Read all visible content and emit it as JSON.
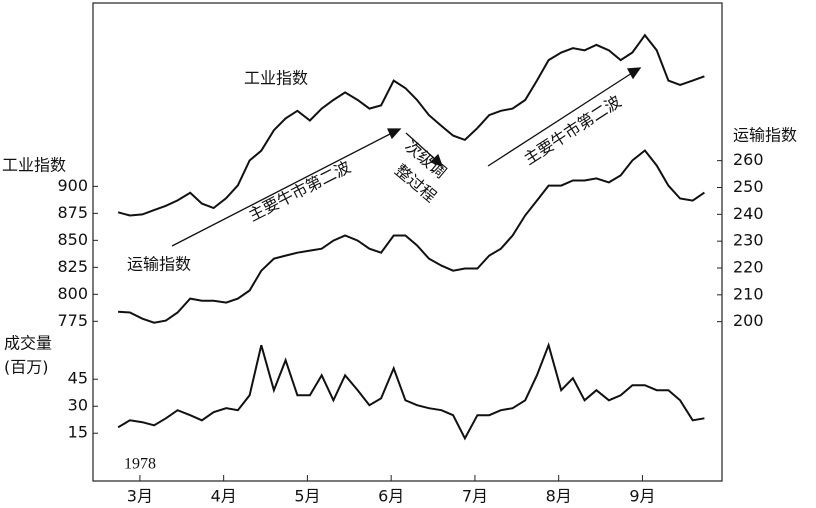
{
  "chart_data": {
    "type": "line",
    "ylabel": "工业指数",
    "y2label": "运输指数",
    "year_label": "1978",
    "x": [
      2.74,
      2.88,
      3.03,
      3.17,
      3.31,
      3.45,
      3.6,
      3.74,
      3.88,
      4.03,
      4.17,
      4.31,
      4.45,
      4.6,
      4.74,
      4.88,
      5.03,
      5.17,
      5.31,
      5.45,
      5.6,
      5.74,
      5.88,
      6.03,
      6.17,
      6.31,
      6.45,
      6.6,
      6.74,
      6.88,
      7.03,
      7.17,
      7.31,
      7.45,
      7.6,
      7.74,
      7.88,
      8.03,
      8.17,
      8.31,
      8.45,
      8.6,
      8.74,
      8.88,
      9.03,
      9.17,
      9.31,
      9.45,
      9.6,
      9.74
    ],
    "xlim": [
      2.44,
      9.95
    ],
    "xticks": [
      {
        "value": 3,
        "label": "3月"
      },
      {
        "value": 4,
        "label": "4月"
      },
      {
        "value": 5,
        "label": "5月"
      },
      {
        "value": 6,
        "label": "6月"
      },
      {
        "value": 7,
        "label": "7月"
      },
      {
        "value": 8,
        "label": "8月"
      },
      {
        "value": 9,
        "label": "9月"
      }
    ],
    "ylim": [
      628,
      1068
    ],
    "yticks": [
      775,
      800,
      825,
      850,
      875,
      900
    ],
    "y2lim": [
      141,
      318
    ],
    "y2ticks": [
      200,
      210,
      220,
      230,
      240,
      250,
      260
    ],
    "y3lim": [
      -11,
      253
    ],
    "y3ticks": [
      15,
      30,
      45
    ],
    "series": [
      {
        "name": "工业指数",
        "color": "#111111",
        "axis": "y",
        "values": [
          876,
          873,
          874,
          878,
          882,
          887,
          894,
          884,
          880,
          889,
          901,
          924,
          933,
          952,
          963,
          970,
          961,
          972,
          980,
          987,
          980,
          972,
          975,
          998,
          991,
          980,
          966,
          956,
          947,
          943,
          954,
          966,
          970,
          972,
          980,
          998,
          1017,
          1024,
          1028,
          1026,
          1031,
          1026,
          1017,
          1024,
          1040,
          1026,
          998,
          994,
          998,
          1002
        ]
      },
      {
        "name": "运输指数",
        "color": "#111111",
        "axis": "y2",
        "values": [
          203.7,
          203.4,
          201.1,
          199.6,
          200.4,
          203.4,
          208.6,
          207.8,
          207.8,
          207.1,
          208.6,
          211.6,
          219.0,
          223.5,
          224.6,
          225.7,
          226.5,
          227.2,
          230.2,
          232.1,
          230.2,
          227.2,
          225.7,
          232.1,
          232.1,
          228.4,
          223.5,
          220.9,
          219.0,
          219.8,
          219.8,
          224.6,
          227.2,
          232.1,
          239.6,
          245.1,
          250.7,
          250.7,
          252.6,
          252.6,
          253.4,
          251.9,
          254.5,
          260.1,
          263.8,
          258.2,
          250.7,
          245.9,
          245.1,
          248.1
        ]
      },
      {
        "name": "成交量",
        "unit": "(百万)",
        "color": "#111111",
        "axis": "y3",
        "values": [
          18.3,
          22.2,
          21.1,
          19.4,
          23.3,
          27.8,
          25,
          22.2,
          26.7,
          28.9,
          27.8,
          36.1,
          63.9,
          38.9,
          55.6,
          36.1,
          36.1,
          47.2,
          33.3,
          47.2,
          38.9,
          30.6,
          34.4,
          51.1,
          33.3,
          30.6,
          28.9,
          27.8,
          25,
          12.2,
          25,
          25,
          27.8,
          28.9,
          33.3,
          47.2,
          63.9,
          38.9,
          45.6,
          33.3,
          38.9,
          33.3,
          36.1,
          41.7,
          41.7,
          38.9,
          38.9,
          33.3,
          22.2,
          23.3
        ]
      }
    ],
    "annotations": [
      {
        "text": "主要牛市第二波"
      },
      {
        "text": "次级调"
      },
      {
        "text": "整过程"
      },
      {
        "text": "主要牛市第二波"
      }
    ]
  }
}
